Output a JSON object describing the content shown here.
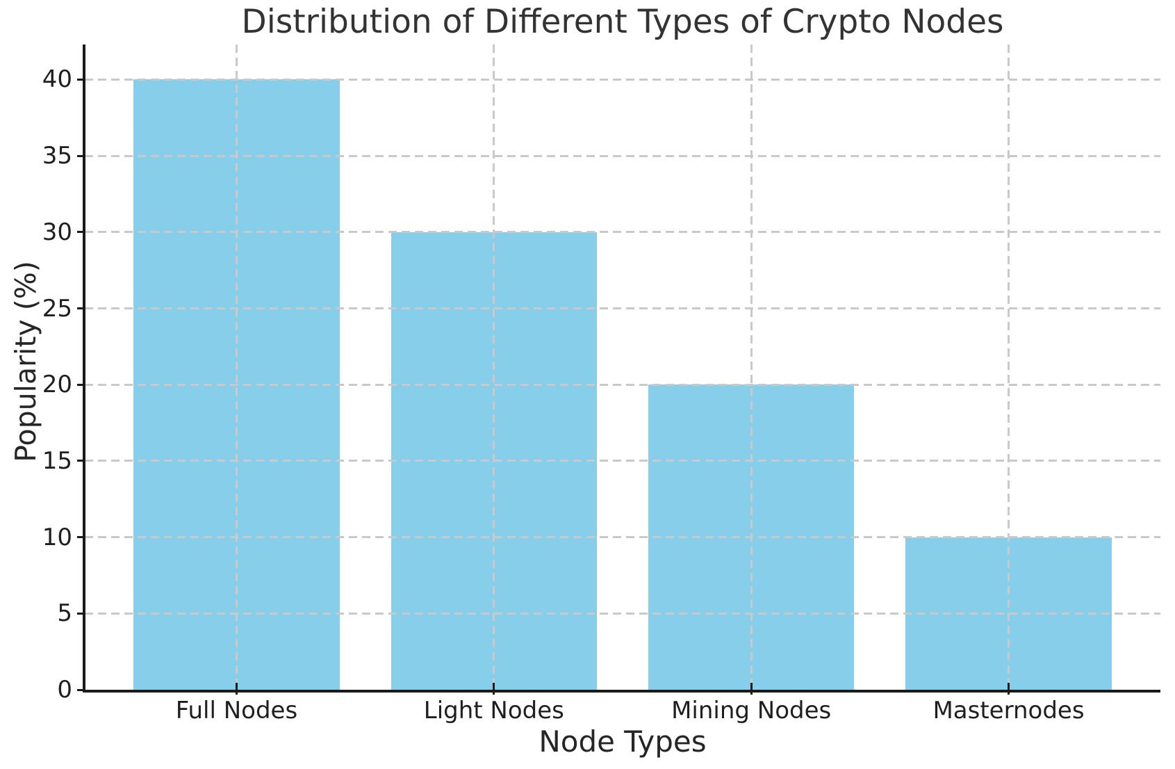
{
  "chart_data": {
    "type": "bar",
    "title": "Distribution of Different Types of Crypto Nodes",
    "xlabel": "Node Types",
    "ylabel": "Popularity (%)",
    "categories": [
      "Full Nodes",
      "Light Nodes",
      "Mining Nodes",
      "Masternodes"
    ],
    "values": [
      40,
      30,
      20,
      10
    ],
    "bar_color": "#87CEEB",
    "ylim": [
      0,
      42.3
    ],
    "yticks": [
      0,
      5,
      10,
      15,
      20,
      25,
      30,
      35,
      40
    ],
    "bar_width_fraction": 0.8,
    "grid": {
      "visible": true,
      "style": "dashed",
      "color": "#c9c9c9",
      "axes": "both",
      "above_bars": true
    },
    "legend": "none",
    "background_color": "#ffffff",
    "axis_color": "#1a1a1a",
    "text_color": "#262626"
  }
}
